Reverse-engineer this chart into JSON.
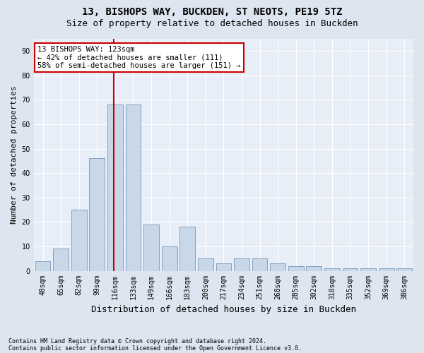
{
  "title1": "13, BISHOPS WAY, BUCKDEN, ST NEOTS, PE19 5TZ",
  "title2": "Size of property relative to detached houses in Buckden",
  "xlabel": "Distribution of detached houses by size in Buckden",
  "ylabel": "Number of detached properties",
  "footnote1": "Contains HM Land Registry data © Crown copyright and database right 2024.",
  "footnote2": "Contains public sector information licensed under the Open Government Licence v3.0.",
  "bar_labels": [
    "48sqm",
    "65sqm",
    "82sqm",
    "99sqm",
    "116sqm",
    "133sqm",
    "149sqm",
    "166sqm",
    "183sqm",
    "200sqm",
    "217sqm",
    "234sqm",
    "251sqm",
    "268sqm",
    "285sqm",
    "302sqm",
    "318sqm",
    "335sqm",
    "352sqm",
    "369sqm",
    "386sqm"
  ],
  "bar_values": [
    4,
    9,
    25,
    46,
    68,
    68,
    19,
    10,
    18,
    5,
    3,
    5,
    5,
    3,
    2,
    2,
    1,
    1,
    1,
    1,
    1
  ],
  "bar_color": "#c8d8e8",
  "bar_edgecolor": "#7799bb",
  "highlight_color": "#cc0000",
  "annotation_line1": "13 BISHOPS WAY: 123sqm",
  "annotation_line2": "← 42% of detached houses are smaller (111)",
  "annotation_line3": "58% of semi-detached houses are larger (151) →",
  "annotation_box_facecolor": "#ffffff",
  "annotation_box_edgecolor": "#cc0000",
  "ylim": [
    0,
    95
  ],
  "yticks": [
    0,
    10,
    20,
    30,
    40,
    50,
    60,
    70,
    80,
    90
  ],
  "bg_color": "#dde5f0",
  "plot_bg_color": "#e8eef8",
  "grid_color": "#ffffff",
  "title1_fontsize": 10,
  "title2_fontsize": 9,
  "xlabel_fontsize": 9,
  "ylabel_fontsize": 8,
  "tick_fontsize": 7,
  "annotation_fontsize": 7.5,
  "footnote_fontsize": 6
}
